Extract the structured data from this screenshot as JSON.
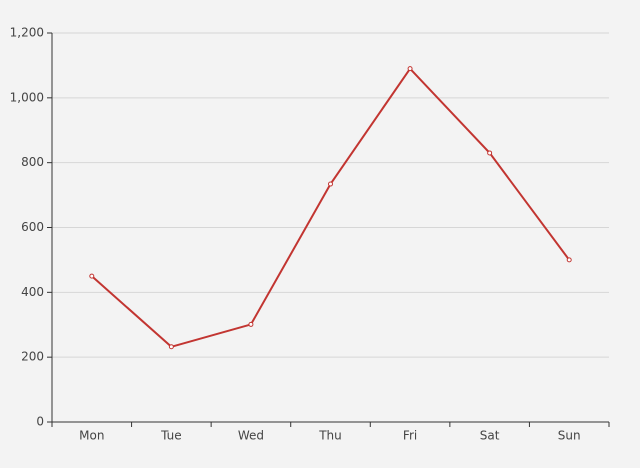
{
  "chart_data": {
    "type": "line",
    "categories": [
      "Mon",
      "Tue",
      "Wed",
      "Thu",
      "Fri",
      "Sat",
      "Sun"
    ],
    "values": [
      450,
      232,
      301,
      734,
      1090,
      830,
      500
    ],
    "color": "#c23531",
    "ylim": [
      0,
      1200
    ],
    "yticks": [
      0,
      200,
      400,
      600,
      800,
      {
        "value": 1000,
        "label": "1,000"
      },
      {
        "value": 1200,
        "label": "1,200"
      }
    ],
    "grid": true
  }
}
